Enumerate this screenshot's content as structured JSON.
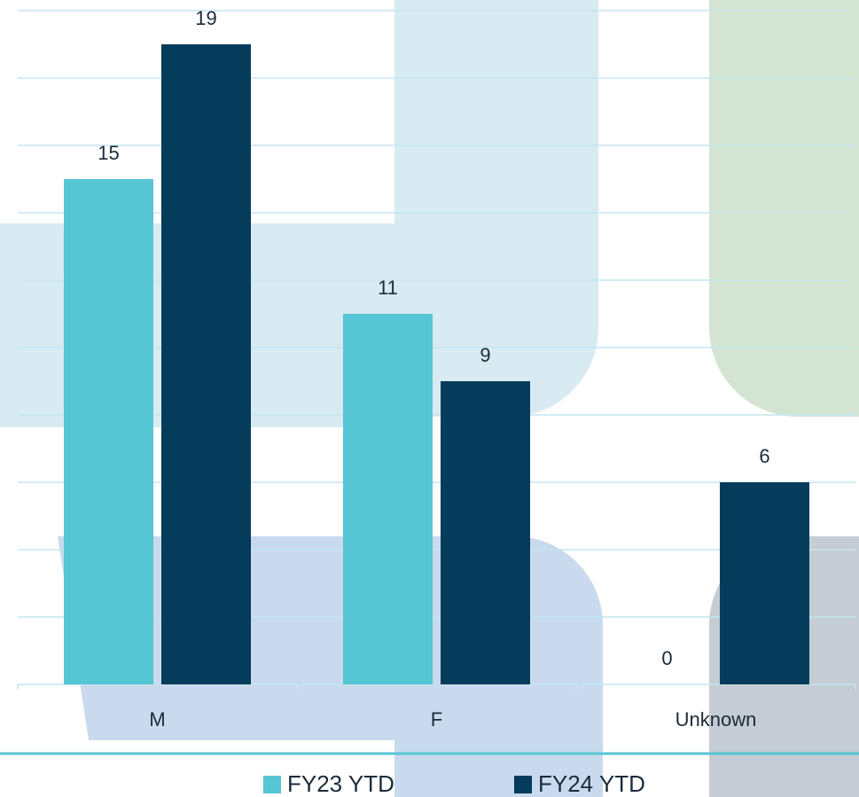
{
  "chart_data": {
    "type": "bar",
    "categories": [
      "M",
      "F",
      "Unknown"
    ],
    "series": [
      {
        "name": "FY23 YTD",
        "color": "#56c5d4",
        "values": [
          15,
          11,
          0
        ]
      },
      {
        "name": "FY24 YTD",
        "color": "#053c5c",
        "values": [
          19,
          9,
          6
        ]
      }
    ],
    "ylim": [
      0,
      20
    ],
    "yticks": [
      0,
      2,
      4,
      6,
      8,
      10,
      12,
      14,
      16,
      18,
      20
    ],
    "grid": true,
    "legend": "bottom"
  }
}
